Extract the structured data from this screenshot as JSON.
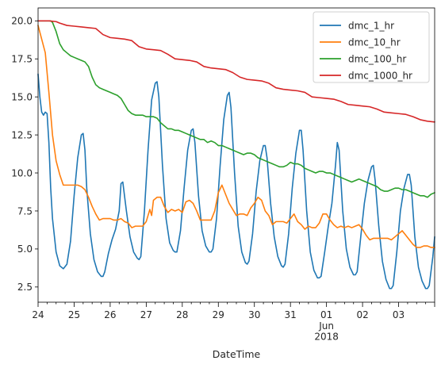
{
  "chart_data": {
    "type": "line",
    "title": "",
    "xlabel": "DateTime",
    "ylabel": "",
    "x_unit": "day",
    "x_tick_labels": [
      "24",
      "25",
      "26",
      "27",
      "28",
      "29",
      "30",
      "31",
      "01",
      "02",
      "03"
    ],
    "x_tick_sublabels": {
      "8": [
        "Jun",
        "2018"
      ]
    },
    "xlim": [
      0,
      11
    ],
    "ylim": [
      1.5,
      20.85
    ],
    "y_ticks": [
      2.5,
      5.0,
      7.5,
      10.0,
      12.5,
      15.0,
      17.5,
      20.0
    ],
    "y_tick_labels": [
      "2.5",
      "5.0",
      "7.5",
      "10.0",
      "12.5",
      "15.0",
      "17.5",
      "20.0"
    ],
    "grid": false,
    "legend_position": "top-right",
    "series": [
      {
        "name": "dmc_1_hr",
        "color": "#1f77b4",
        "x": [
          0,
          0.05,
          0.1,
          0.15,
          0.2,
          0.25,
          0.3,
          0.35,
          0.4,
          0.5,
          0.6,
          0.7,
          0.8,
          0.9,
          1.0,
          1.1,
          1.2,
          1.25,
          1.3,
          1.35,
          1.45,
          1.55,
          1.65,
          1.75,
          1.8,
          1.85,
          1.95,
          2.05,
          2.15,
          2.25,
          2.3,
          2.35,
          2.45,
          2.55,
          2.65,
          2.75,
          2.8,
          2.85,
          2.95,
          3.05,
          3.15,
          3.25,
          3.3,
          3.35,
          3.45,
          3.55,
          3.65,
          3.75,
          3.8,
          3.85,
          3.95,
          4.05,
          4.15,
          4.25,
          4.3,
          4.35,
          4.45,
          4.55,
          4.65,
          4.75,
          4.8,
          4.85,
          4.95,
          5.05,
          5.15,
          5.25,
          5.3,
          5.35,
          5.45,
          5.55,
          5.65,
          5.75,
          5.8,
          5.85,
          5.95,
          6.05,
          6.15,
          6.25,
          6.3,
          6.35,
          6.45,
          6.55,
          6.65,
          6.75,
          6.8,
          6.85,
          6.95,
          7.05,
          7.15,
          7.25,
          7.3,
          7.35,
          7.45,
          7.55,
          7.65,
          7.75,
          7.8,
          7.85,
          7.95,
          8.05,
          8.15,
          8.25,
          8.3,
          8.35,
          8.45,
          8.55,
          8.65,
          8.75,
          8.8,
          8.85,
          8.95,
          9.05,
          9.15,
          9.25,
          9.3,
          9.35,
          9.45,
          9.55,
          9.65,
          9.75,
          9.8,
          9.85,
          9.95,
          10.05,
          10.15,
          10.25,
          10.3,
          10.35,
          10.45,
          10.55,
          10.65,
          10.75,
          10.8,
          10.85,
          10.95,
          11.0
        ],
        "y": [
          16.5,
          15.0,
          14.0,
          13.8,
          14.0,
          13.9,
          12.0,
          9.0,
          7.0,
          4.8,
          3.9,
          3.7,
          4.0,
          5.5,
          8.5,
          11.0,
          12.5,
          12.6,
          11.5,
          9.0,
          6.0,
          4.3,
          3.5,
          3.2,
          3.2,
          3.5,
          4.7,
          5.6,
          6.3,
          7.5,
          9.3,
          9.4,
          7.5,
          5.8,
          4.8,
          4.4,
          4.3,
          4.5,
          7.5,
          11.5,
          14.8,
          15.9,
          16.0,
          15.0,
          10.5,
          7.0,
          5.4,
          4.9,
          4.8,
          4.8,
          6.2,
          9.0,
          11.5,
          12.8,
          12.9,
          12.0,
          8.5,
          6.2,
          5.2,
          4.8,
          4.8,
          5.0,
          7.0,
          10.5,
          13.5,
          15.1,
          15.3,
          14.3,
          10.0,
          6.5,
          4.8,
          4.1,
          4.0,
          4.2,
          6.0,
          8.8,
          10.8,
          11.8,
          11.8,
          11.0,
          8.0,
          5.8,
          4.5,
          3.9,
          3.8,
          4.0,
          6.0,
          9.0,
          11.3,
          12.8,
          12.8,
          11.5,
          7.5,
          4.8,
          3.6,
          3.1,
          3.1,
          3.2,
          4.8,
          6.5,
          8.0,
          10.5,
          12.0,
          11.5,
          7.5,
          5.0,
          3.8,
          3.3,
          3.3,
          3.5,
          5.8,
          8.0,
          9.5,
          10.4,
          10.5,
          9.5,
          6.5,
          4.2,
          3.0,
          2.4,
          2.4,
          2.6,
          4.8,
          7.5,
          9.0,
          9.9,
          9.9,
          9.2,
          5.8,
          3.8,
          2.9,
          2.4,
          2.4,
          2.6,
          4.5,
          5.8
        ]
      },
      {
        "name": "dmc_10_hr",
        "color": "#ff7f0e",
        "x": [
          0,
          0.1,
          0.2,
          0.3,
          0.4,
          0.5,
          0.6,
          0.7,
          0.8,
          0.85,
          0.9,
          1.0,
          1.1,
          1.2,
          1.3,
          1.4,
          1.5,
          1.6,
          1.7,
          1.8,
          1.9,
          2.0,
          2.1,
          2.2,
          2.3,
          2.4,
          2.5,
          2.6,
          2.7,
          2.8,
          2.9,
          3.0,
          3.1,
          3.15,
          3.2,
          3.3,
          3.4,
          3.5,
          3.6,
          3.7,
          3.8,
          3.9,
          4.0,
          4.1,
          4.2,
          4.3,
          4.4,
          4.5,
          4.6,
          4.7,
          4.8,
          4.9,
          5.0,
          5.1,
          5.2,
          5.3,
          5.4,
          5.5,
          5.6,
          5.7,
          5.8,
          5.9,
          6.0,
          6.1,
          6.2,
          6.3,
          6.4,
          6.5,
          6.6,
          6.7,
          6.8,
          6.9,
          7.0,
          7.1,
          7.2,
          7.3,
          7.4,
          7.5,
          7.6,
          7.7,
          7.8,
          7.9,
          8.0,
          8.1,
          8.2,
          8.3,
          8.4,
          8.5,
          8.6,
          8.7,
          8.8,
          8.9,
          9.0,
          9.1,
          9.2,
          9.3,
          9.4,
          9.5,
          9.6,
          9.7,
          9.8,
          9.9,
          10.0,
          10.1,
          10.2,
          10.3,
          10.4,
          10.5,
          10.6,
          10.7,
          10.8,
          10.9,
          11.0
        ],
        "y": [
          19.7,
          18.8,
          17.9,
          15.3,
          12.5,
          10.8,
          9.9,
          9.2,
          9.2,
          9.2,
          9.2,
          9.2,
          9.2,
          9.1,
          8.9,
          8.4,
          7.8,
          7.3,
          6.9,
          7.0,
          7.0,
          7.0,
          6.9,
          6.9,
          7.0,
          6.8,
          6.7,
          6.4,
          6.5,
          6.5,
          6.5,
          6.8,
          7.6,
          7.2,
          8.2,
          8.4,
          8.4,
          7.8,
          7.4,
          7.6,
          7.5,
          7.6,
          7.4,
          8.1,
          8.2,
          8.0,
          7.5,
          6.9,
          6.9,
          6.9,
          6.9,
          7.5,
          8.7,
          9.2,
          8.6,
          8.0,
          7.6,
          7.2,
          7.3,
          7.3,
          7.2,
          7.7,
          8.0,
          8.4,
          8.2,
          7.5,
          7.2,
          6.6,
          6.8,
          6.8,
          6.8,
          6.7,
          7.0,
          7.3,
          6.8,
          6.6,
          6.3,
          6.5,
          6.4,
          6.4,
          6.7,
          7.3,
          7.3,
          6.9,
          6.6,
          6.4,
          6.5,
          6.4,
          6.5,
          6.4,
          6.5,
          6.6,
          6.3,
          5.9,
          5.6,
          5.7,
          5.7,
          5.7,
          5.7,
          5.7,
          5.6,
          5.8,
          6.0,
          6.2,
          5.9,
          5.6,
          5.3,
          5.1,
          5.1,
          5.2,
          5.2,
          5.1,
          5.1
        ]
      },
      {
        "name": "dmc_100_hr",
        "color": "#2ca02c",
        "x": [
          0,
          0.2,
          0.35,
          0.4,
          0.5,
          0.6,
          0.7,
          0.8,
          0.9,
          1.0,
          1.1,
          1.2,
          1.3,
          1.4,
          1.5,
          1.6,
          1.7,
          1.8,
          1.9,
          2.0,
          2.1,
          2.2,
          2.3,
          2.4,
          2.5,
          2.6,
          2.7,
          2.8,
          2.9,
          3.0,
          3.1,
          3.2,
          3.3,
          3.4,
          3.5,
          3.6,
          3.7,
          3.8,
          3.9,
          4.0,
          4.1,
          4.2,
          4.3,
          4.4,
          4.5,
          4.6,
          4.7,
          4.8,
          4.9,
          5.0,
          5.1,
          5.2,
          5.3,
          5.4,
          5.5,
          5.6,
          5.7,
          5.8,
          5.9,
          6.0,
          6.1,
          6.2,
          6.3,
          6.4,
          6.5,
          6.6,
          6.7,
          6.8,
          6.9,
          7.0,
          7.1,
          7.2,
          7.3,
          7.4,
          7.5,
          7.6,
          7.7,
          7.8,
          7.9,
          8.0,
          8.1,
          8.2,
          8.3,
          8.4,
          8.5,
          8.6,
          8.7,
          8.8,
          8.9,
          9.0,
          9.1,
          9.2,
          9.3,
          9.4,
          9.5,
          9.6,
          9.7,
          9.8,
          9.9,
          10.0,
          10.1,
          10.2,
          10.3,
          10.4,
          10.5,
          10.6,
          10.7,
          10.8,
          10.9,
          11.0
        ],
        "y": [
          20.0,
          20.0,
          20.0,
          19.9,
          19.3,
          18.5,
          18.1,
          17.9,
          17.7,
          17.6,
          17.5,
          17.4,
          17.3,
          17.0,
          16.3,
          15.8,
          15.6,
          15.5,
          15.4,
          15.3,
          15.2,
          15.1,
          14.9,
          14.5,
          14.1,
          13.9,
          13.8,
          13.8,
          13.8,
          13.7,
          13.7,
          13.7,
          13.6,
          13.3,
          13.1,
          12.9,
          12.9,
          12.8,
          12.8,
          12.7,
          12.6,
          12.5,
          12.4,
          12.3,
          12.2,
          12.2,
          12.0,
          12.1,
          12.0,
          11.8,
          11.8,
          11.7,
          11.6,
          11.5,
          11.4,
          11.3,
          11.2,
          11.3,
          11.3,
          11.2,
          11.0,
          10.9,
          10.8,
          10.7,
          10.6,
          10.5,
          10.4,
          10.4,
          10.5,
          10.7,
          10.6,
          10.6,
          10.5,
          10.3,
          10.2,
          10.1,
          10.0,
          10.1,
          10.1,
          10.0,
          10.0,
          9.9,
          9.8,
          9.7,
          9.6,
          9.5,
          9.4,
          9.5,
          9.6,
          9.5,
          9.4,
          9.3,
          9.2,
          9.1,
          8.9,
          8.8,
          8.8,
          8.9,
          9.0,
          9.0,
          8.9,
          8.9,
          8.8,
          8.7,
          8.6,
          8.5,
          8.5,
          8.4,
          8.6,
          8.7
        ]
      },
      {
        "name": "dmc_1000_hr",
        "color": "#d62728",
        "x": [
          0,
          0.3,
          0.5,
          0.6,
          0.8,
          1.0,
          1.2,
          1.4,
          1.6,
          1.8,
          2.0,
          2.2,
          2.4,
          2.6,
          2.8,
          3.0,
          3.2,
          3.4,
          3.6,
          3.8,
          4.0,
          4.2,
          4.4,
          4.6,
          4.8,
          5.0,
          5.2,
          5.4,
          5.6,
          5.8,
          6.0,
          6.2,
          6.4,
          6.6,
          6.8,
          7.0,
          7.2,
          7.4,
          7.6,
          7.8,
          8.0,
          8.2,
          8.4,
          8.6,
          8.8,
          9.0,
          9.2,
          9.4,
          9.6,
          9.8,
          10.0,
          10.2,
          10.4,
          10.6,
          10.8,
          11.0
        ],
        "y": [
          20.0,
          20.0,
          19.95,
          19.85,
          19.7,
          19.65,
          19.6,
          19.55,
          19.5,
          19.1,
          18.9,
          18.85,
          18.8,
          18.7,
          18.3,
          18.15,
          18.1,
          18.05,
          17.8,
          17.5,
          17.45,
          17.4,
          17.3,
          17.0,
          16.9,
          16.85,
          16.8,
          16.6,
          16.3,
          16.15,
          16.1,
          16.05,
          15.9,
          15.6,
          15.5,
          15.45,
          15.4,
          15.3,
          15.0,
          14.95,
          14.9,
          14.85,
          14.7,
          14.5,
          14.45,
          14.4,
          14.35,
          14.2,
          14.0,
          13.95,
          13.9,
          13.85,
          13.7,
          13.5,
          13.4,
          13.35
        ]
      }
    ]
  }
}
